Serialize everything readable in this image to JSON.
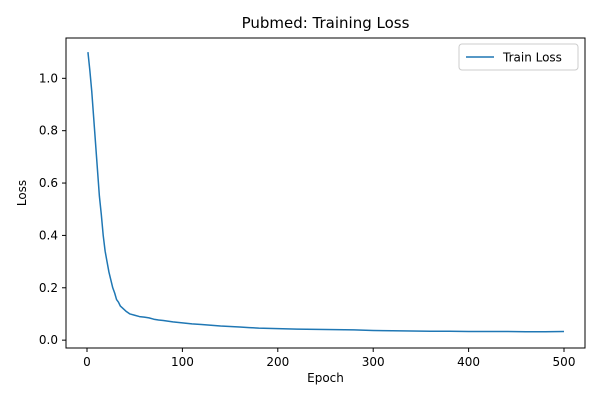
{
  "chart_data": {
    "type": "line",
    "title": "Pubmed: Training Loss",
    "xlabel": "Epoch",
    "ylabel": "Loss",
    "xlim": [
      -22,
      522
    ],
    "ylim": [
      -0.03,
      1.154
    ],
    "xticks": [
      0,
      100,
      200,
      300,
      400,
      500
    ],
    "yticks": [
      0.0,
      0.2,
      0.4,
      0.6,
      0.8,
      1.0
    ],
    "xtick_labels": [
      "0",
      "100",
      "200",
      "300",
      "400",
      "500"
    ],
    "ytick_labels": [
      "0.0",
      "0.2",
      "0.4",
      "0.6",
      "0.8",
      "1.0"
    ],
    "legend": {
      "position": "top-right"
    },
    "grid": false,
    "series": [
      {
        "name": "Train Loss",
        "color": "#1f77b4",
        "x": [
          1,
          3,
          5,
          7,
          9,
          11,
          13,
          15,
          17,
          19,
          21,
          23,
          25,
          27,
          29,
          31,
          33,
          35,
          38,
          41,
          45,
          50,
          55,
          60,
          65,
          70,
          75,
          80,
          90,
          100,
          110,
          120,
          130,
          140,
          150,
          160,
          170,
          180,
          200,
          220,
          240,
          260,
          280,
          300,
          320,
          340,
          360,
          380,
          400,
          420,
          440,
          460,
          480,
          500
        ],
        "values": [
          1.1,
          1.03,
          0.95,
          0.85,
          0.75,
          0.65,
          0.55,
          0.48,
          0.4,
          0.34,
          0.3,
          0.26,
          0.23,
          0.2,
          0.18,
          0.155,
          0.145,
          0.13,
          0.12,
          0.11,
          0.1,
          0.095,
          0.09,
          0.088,
          0.085,
          0.08,
          0.077,
          0.075,
          0.07,
          0.066,
          0.062,
          0.06,
          0.057,
          0.054,
          0.052,
          0.05,
          0.048,
          0.046,
          0.044,
          0.042,
          0.041,
          0.04,
          0.039,
          0.037,
          0.036,
          0.035,
          0.034,
          0.034,
          0.033,
          0.033,
          0.033,
          0.032,
          0.032,
          0.033
        ]
      }
    ]
  }
}
